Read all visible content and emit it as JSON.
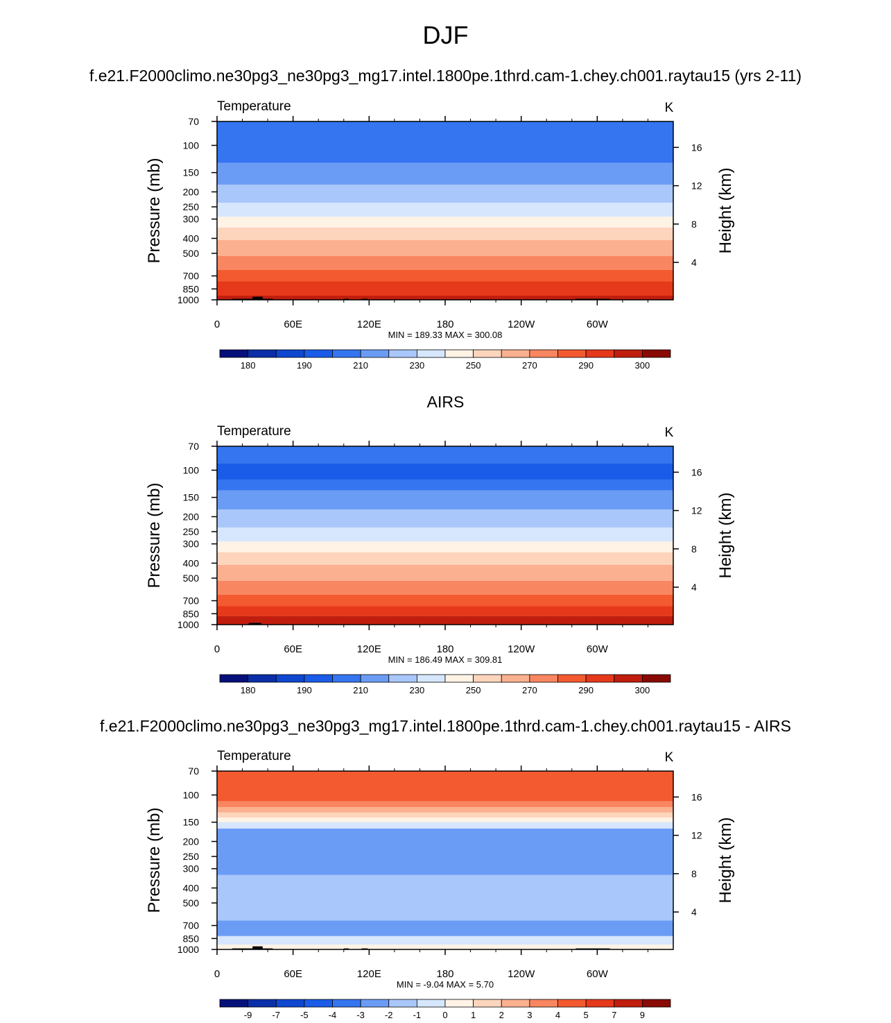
{
  "title": "DJF",
  "colors": {
    "abs_palette": [
      "#06107a",
      "#0a2fa8",
      "#0f47d0",
      "#1a5ce8",
      "#3575f0",
      "#6b9cf5",
      "#a9c7fa",
      "#d6e6fc",
      "#fff3e6",
      "#fdd5bd",
      "#fbb08f",
      "#f88660",
      "#f45a30",
      "#e6381a",
      "#c01d0e",
      "#890a05"
    ],
    "diff_palette": [
      "#06107a",
      "#0a2fa8",
      "#0f47d0",
      "#1a5ce8",
      "#3575f0",
      "#6b9cf5",
      "#a9c7fa",
      "#d6e6fc",
      "#fff3e6",
      "#fdd5bd",
      "#fbb08f",
      "#f88660",
      "#f45a30",
      "#e6381a",
      "#c01d0e",
      "#890a05"
    ],
    "terrain": "#000000"
  },
  "chart_data": [
    {
      "type": "heatmap",
      "panel_title": "f.e21.F2000climo.ne30pg3_ne30pg3_mg17.intel.1800pe.1thrd.cam-1.chey.ch001.raytau15 (yrs 2-11)",
      "left_label": "Temperature",
      "right_label": "K",
      "ylabel": "Pressure (mb)",
      "ylabel_right": "Height (km)",
      "xticks": [
        "0",
        "60E",
        "120E",
        "180",
        "120W",
        "60W"
      ],
      "yticks": [
        "70",
        "100",
        "150",
        "200",
        "250",
        "300",
        "400",
        "500",
        "700",
        "850",
        "1000"
      ],
      "yticks_right": [
        "16",
        "12",
        "8",
        "4"
      ],
      "stats": "MIN = 189.33  MAX = 300.08",
      "colorbar_labels": [
        "180",
        "190",
        "210",
        "230",
        "250",
        "270",
        "290",
        "300"
      ],
      "levels": [
        175,
        180,
        185,
        190,
        200,
        210,
        220,
        230,
        240,
        250,
        260,
        270,
        280,
        290,
        295,
        300
      ],
      "level_fill_bands": [
        {
          "min_p": 70,
          "max_p": 130,
          "value": 200
        },
        {
          "min_p": 130,
          "max_p": 180,
          "value": 210
        },
        {
          "min_p": 180,
          "max_p": 235,
          "value": 220
        },
        {
          "min_p": 235,
          "max_p": 290,
          "value": 230
        },
        {
          "min_p": 290,
          "max_p": 340,
          "value": 240
        },
        {
          "min_p": 340,
          "max_p": 410,
          "value": 250
        },
        {
          "min_p": 410,
          "max_p": 520,
          "value": 260
        },
        {
          "min_p": 520,
          "max_p": 640,
          "value": 270
        },
        {
          "min_p": 640,
          "max_p": 760,
          "value": 280
        },
        {
          "min_p": 760,
          "max_p": 940,
          "value": 290
        },
        {
          "min_p": 940,
          "max_p": 1000,
          "value": 295
        }
      ],
      "min": 189.33,
      "max": 300.08,
      "xlim": [
        0,
        360
      ],
      "ylim": [
        1000,
        70
      ]
    },
    {
      "type": "heatmap",
      "panel_title": "AIRS",
      "left_label": "Temperature",
      "right_label": "K",
      "ylabel": "Pressure (mb)",
      "ylabel_right": "Height (km)",
      "xticks": [
        "0",
        "60E",
        "120E",
        "180",
        "120W",
        "60W"
      ],
      "yticks": [
        "70",
        "100",
        "150",
        "200",
        "250",
        "300",
        "400",
        "500",
        "700",
        "850",
        "1000"
      ],
      "yticks_right": [
        "16",
        "12",
        "8",
        "4"
      ],
      "stats": "MIN = 186.49  MAX = 309.81",
      "colorbar_labels": [
        "180",
        "190",
        "210",
        "230",
        "250",
        "270",
        "290",
        "300"
      ],
      "levels": [
        175,
        180,
        185,
        190,
        200,
        210,
        220,
        230,
        240,
        250,
        260,
        270,
        280,
        290,
        295,
        300
      ],
      "level_fill_bands": [
        {
          "min_p": 70,
          "max_p": 90,
          "value": 200
        },
        {
          "min_p": 90,
          "max_p": 115,
          "value": 190
        },
        {
          "min_p": 115,
          "max_p": 135,
          "value": 200
        },
        {
          "min_p": 135,
          "max_p": 180,
          "value": 210
        },
        {
          "min_p": 180,
          "max_p": 235,
          "value": 220
        },
        {
          "min_p": 235,
          "max_p": 290,
          "value": 230
        },
        {
          "min_p": 290,
          "max_p": 340,
          "value": 240
        },
        {
          "min_p": 340,
          "max_p": 410,
          "value": 250
        },
        {
          "min_p": 410,
          "max_p": 520,
          "value": 260
        },
        {
          "min_p": 520,
          "max_p": 640,
          "value": 270
        },
        {
          "min_p": 640,
          "max_p": 760,
          "value": 280
        },
        {
          "min_p": 760,
          "max_p": 880,
          "value": 290
        },
        {
          "min_p": 880,
          "max_p": 1000,
          "value": 295
        }
      ],
      "min": 186.49,
      "max": 309.81,
      "xlim": [
        0,
        360
      ],
      "ylim": [
        1000,
        70
      ]
    },
    {
      "type": "heatmap",
      "panel_title": "f.e21.F2000climo.ne30pg3_ne30pg3_mg17.intel.1800pe.1thrd.cam-1.chey.ch001.raytau15 - AIRS",
      "left_label": "Temperature",
      "right_label": "K",
      "ylabel": "Pressure (mb)",
      "ylabel_right": "Height (km)",
      "xticks": [
        "0",
        "60E",
        "120E",
        "180",
        "120W",
        "60W"
      ],
      "yticks": [
        "70",
        "100",
        "150",
        "200",
        "250",
        "300",
        "400",
        "500",
        "700",
        "850",
        "1000"
      ],
      "yticks_right": [
        "16",
        "12",
        "8",
        "4"
      ],
      "stats": "MIN = -9.04  MAX =   5.70",
      "colorbar_labels": [
        "-9",
        "-7",
        "-5",
        "-4",
        "-3",
        "-2",
        "-1",
        "0",
        "1",
        "2",
        "3",
        "4",
        "5",
        "7",
        "9"
      ],
      "levels": [
        -10,
        -9,
        -7,
        -5,
        -4,
        -3,
        -2,
        -1,
        0,
        1,
        2,
        3,
        4,
        5,
        7,
        9
      ],
      "level_fill_bands": [
        {
          "min_p": 70,
          "max_p": 110,
          "value": 4
        },
        {
          "min_p": 110,
          "max_p": 120,
          "value": 3
        },
        {
          "min_p": 120,
          "max_p": 130,
          "value": 2
        },
        {
          "min_p": 130,
          "max_p": 140,
          "value": 1
        },
        {
          "min_p": 140,
          "max_p": 150,
          "value": 0
        },
        {
          "min_p": 150,
          "max_p": 165,
          "value": -1
        },
        {
          "min_p": 165,
          "max_p": 330,
          "value": -3
        },
        {
          "min_p": 330,
          "max_p": 650,
          "value": -2
        },
        {
          "min_p": 650,
          "max_p": 820,
          "value": -3
        },
        {
          "min_p": 820,
          "max_p": 930,
          "value": -1
        },
        {
          "min_p": 930,
          "max_p": 1000,
          "value": 0
        }
      ],
      "min": -9.04,
      "max": 5.7,
      "xlim": [
        0,
        360
      ],
      "ylim": [
        1000,
        70
      ]
    }
  ]
}
